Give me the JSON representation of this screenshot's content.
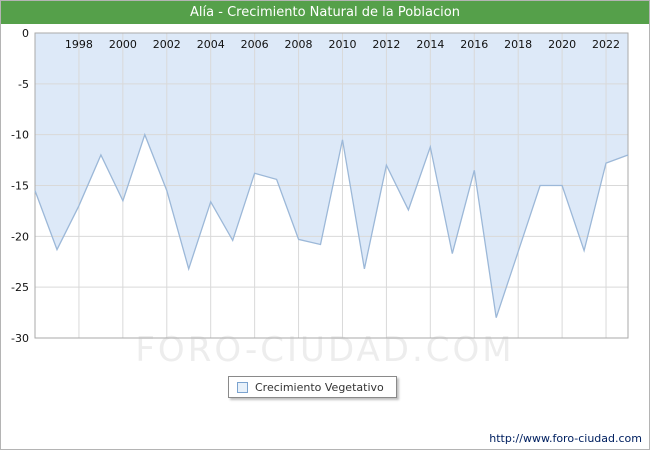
{
  "header": {
    "title": "Alía - Crecimiento Natural de la Poblacion"
  },
  "legend": {
    "label": "Crecimiento Vegetativo"
  },
  "watermark": {
    "text": "FORO-CIUDAD.COM"
  },
  "footer": {
    "url": "http://www.foro-ciudad.com"
  },
  "chart_data": {
    "type": "area",
    "title": "Alía - Crecimiento Natural de la Poblacion",
    "series_name": "Crecimiento Vegetativo",
    "x": [
      1996,
      1997,
      1998,
      1999,
      2000,
      2001,
      2002,
      2003,
      2004,
      2005,
      2006,
      2007,
      2008,
      2009,
      2010,
      2011,
      2012,
      2013,
      2014,
      2015,
      2016,
      2017,
      2018,
      2019,
      2020,
      2021,
      2022,
      2023
    ],
    "values": [
      -15.5,
      -21.3,
      -17.0,
      -12.0,
      -16.5,
      -10.0,
      -15.5,
      -23.2,
      -16.6,
      -20.4,
      -13.8,
      -14.4,
      -20.3,
      -20.8,
      -10.5,
      -23.2,
      -13.0,
      -17.4,
      -11.2,
      -21.7,
      -13.5,
      -28.0,
      -21.5,
      -15.0,
      -15.0,
      -21.4,
      -12.8,
      -12.0
    ],
    "x_ticks": [
      1998,
      2000,
      2002,
      2004,
      2006,
      2008,
      2010,
      2012,
      2014,
      2016,
      2018,
      2020,
      2022
    ],
    "y_ticks": [
      0,
      -5,
      -10,
      -15,
      -20,
      -25,
      -30
    ],
    "ylim": [
      -30,
      0
    ],
    "xlim": [
      1996,
      2023
    ],
    "grid": true,
    "legend_position": "bottom",
    "colors": {
      "fill": "#dde9f8",
      "line": "#9cb8d8",
      "grid": "#d9d9d9",
      "plot_border": "#aaaaaa",
      "tick_text": "#111111",
      "header_bg": "#55a04a"
    }
  }
}
